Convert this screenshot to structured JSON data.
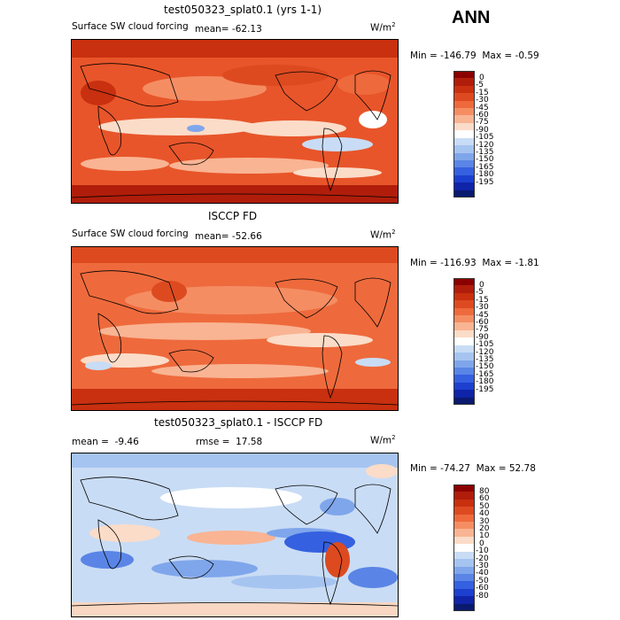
{
  "season": "ANN",
  "panels": [
    {
      "id": "model",
      "title": "test050323_splat0.1 (yrs 1-1)",
      "variable": "Surface SW cloud forcing",
      "mean_label": "mean=",
      "mean_value": "-62.13",
      "units_base": "W/m",
      "units_exp": "2",
      "min_label": "Min =",
      "min_value": "-146.79",
      "max_label": "Max =",
      "max_value": "-0.59",
      "palette": "forcing"
    },
    {
      "id": "obs",
      "title": "ISCCP FD",
      "variable": "Surface SW cloud forcing",
      "mean_label": "mean=",
      "mean_value": "-52.66",
      "units_base": "W/m",
      "units_exp": "2",
      "min_label": "Min =",
      "min_value": "-116.93",
      "max_label": "Max =",
      "max_value": "-1.81",
      "palette": "forcing"
    },
    {
      "id": "diff",
      "title": "test050323_splat0.1 - ISCCP FD",
      "mean_label": "mean =",
      "mean_value": "-9.46",
      "rmse_label": "rmse =",
      "rmse_value": "17.58",
      "units_base": "W/m",
      "units_exp": "2",
      "min_label": "Min =",
      "min_value": "-74.27",
      "max_label": "Max =",
      "max_value": "52.78",
      "palette": "diff"
    }
  ],
  "colorbars": {
    "forcing": {
      "labels": [
        "0",
        "-5",
        "-15",
        "-30",
        "-45",
        "-60",
        "-75",
        "-90",
        "-105",
        "-120",
        "-135",
        "-150",
        "-165",
        "-180",
        "-195"
      ],
      "colors": [
        "#8b0000",
        "#b01d0b",
        "#c8300f",
        "#dd4a20",
        "#ee6a3c",
        "#f58d63",
        "#f9b493",
        "#fbdcc8",
        "#ffffff",
        "#c9dcf5",
        "#a6c4f0",
        "#7fa6eb",
        "#5a85e6",
        "#3560df",
        "#1c3fcf",
        "#0f24a8",
        "#091a6e"
      ]
    },
    "diff": {
      "labels": [
        "80",
        "60",
        "50",
        "40",
        "30",
        "20",
        "10",
        "0",
        "-10",
        "-20",
        "-30",
        "-40",
        "-50",
        "-60",
        "-80"
      ],
      "colors": [
        "#8b0000",
        "#b01d0b",
        "#c8300f",
        "#dd4a20",
        "#ee6a3c",
        "#f58d63",
        "#f9b493",
        "#fbdcc8",
        "#ffffff",
        "#c9dcf5",
        "#a6c4f0",
        "#7fa6eb",
        "#5a85e6",
        "#3560df",
        "#1c3fcf",
        "#0f24a8",
        "#091a6e"
      ]
    }
  }
}
